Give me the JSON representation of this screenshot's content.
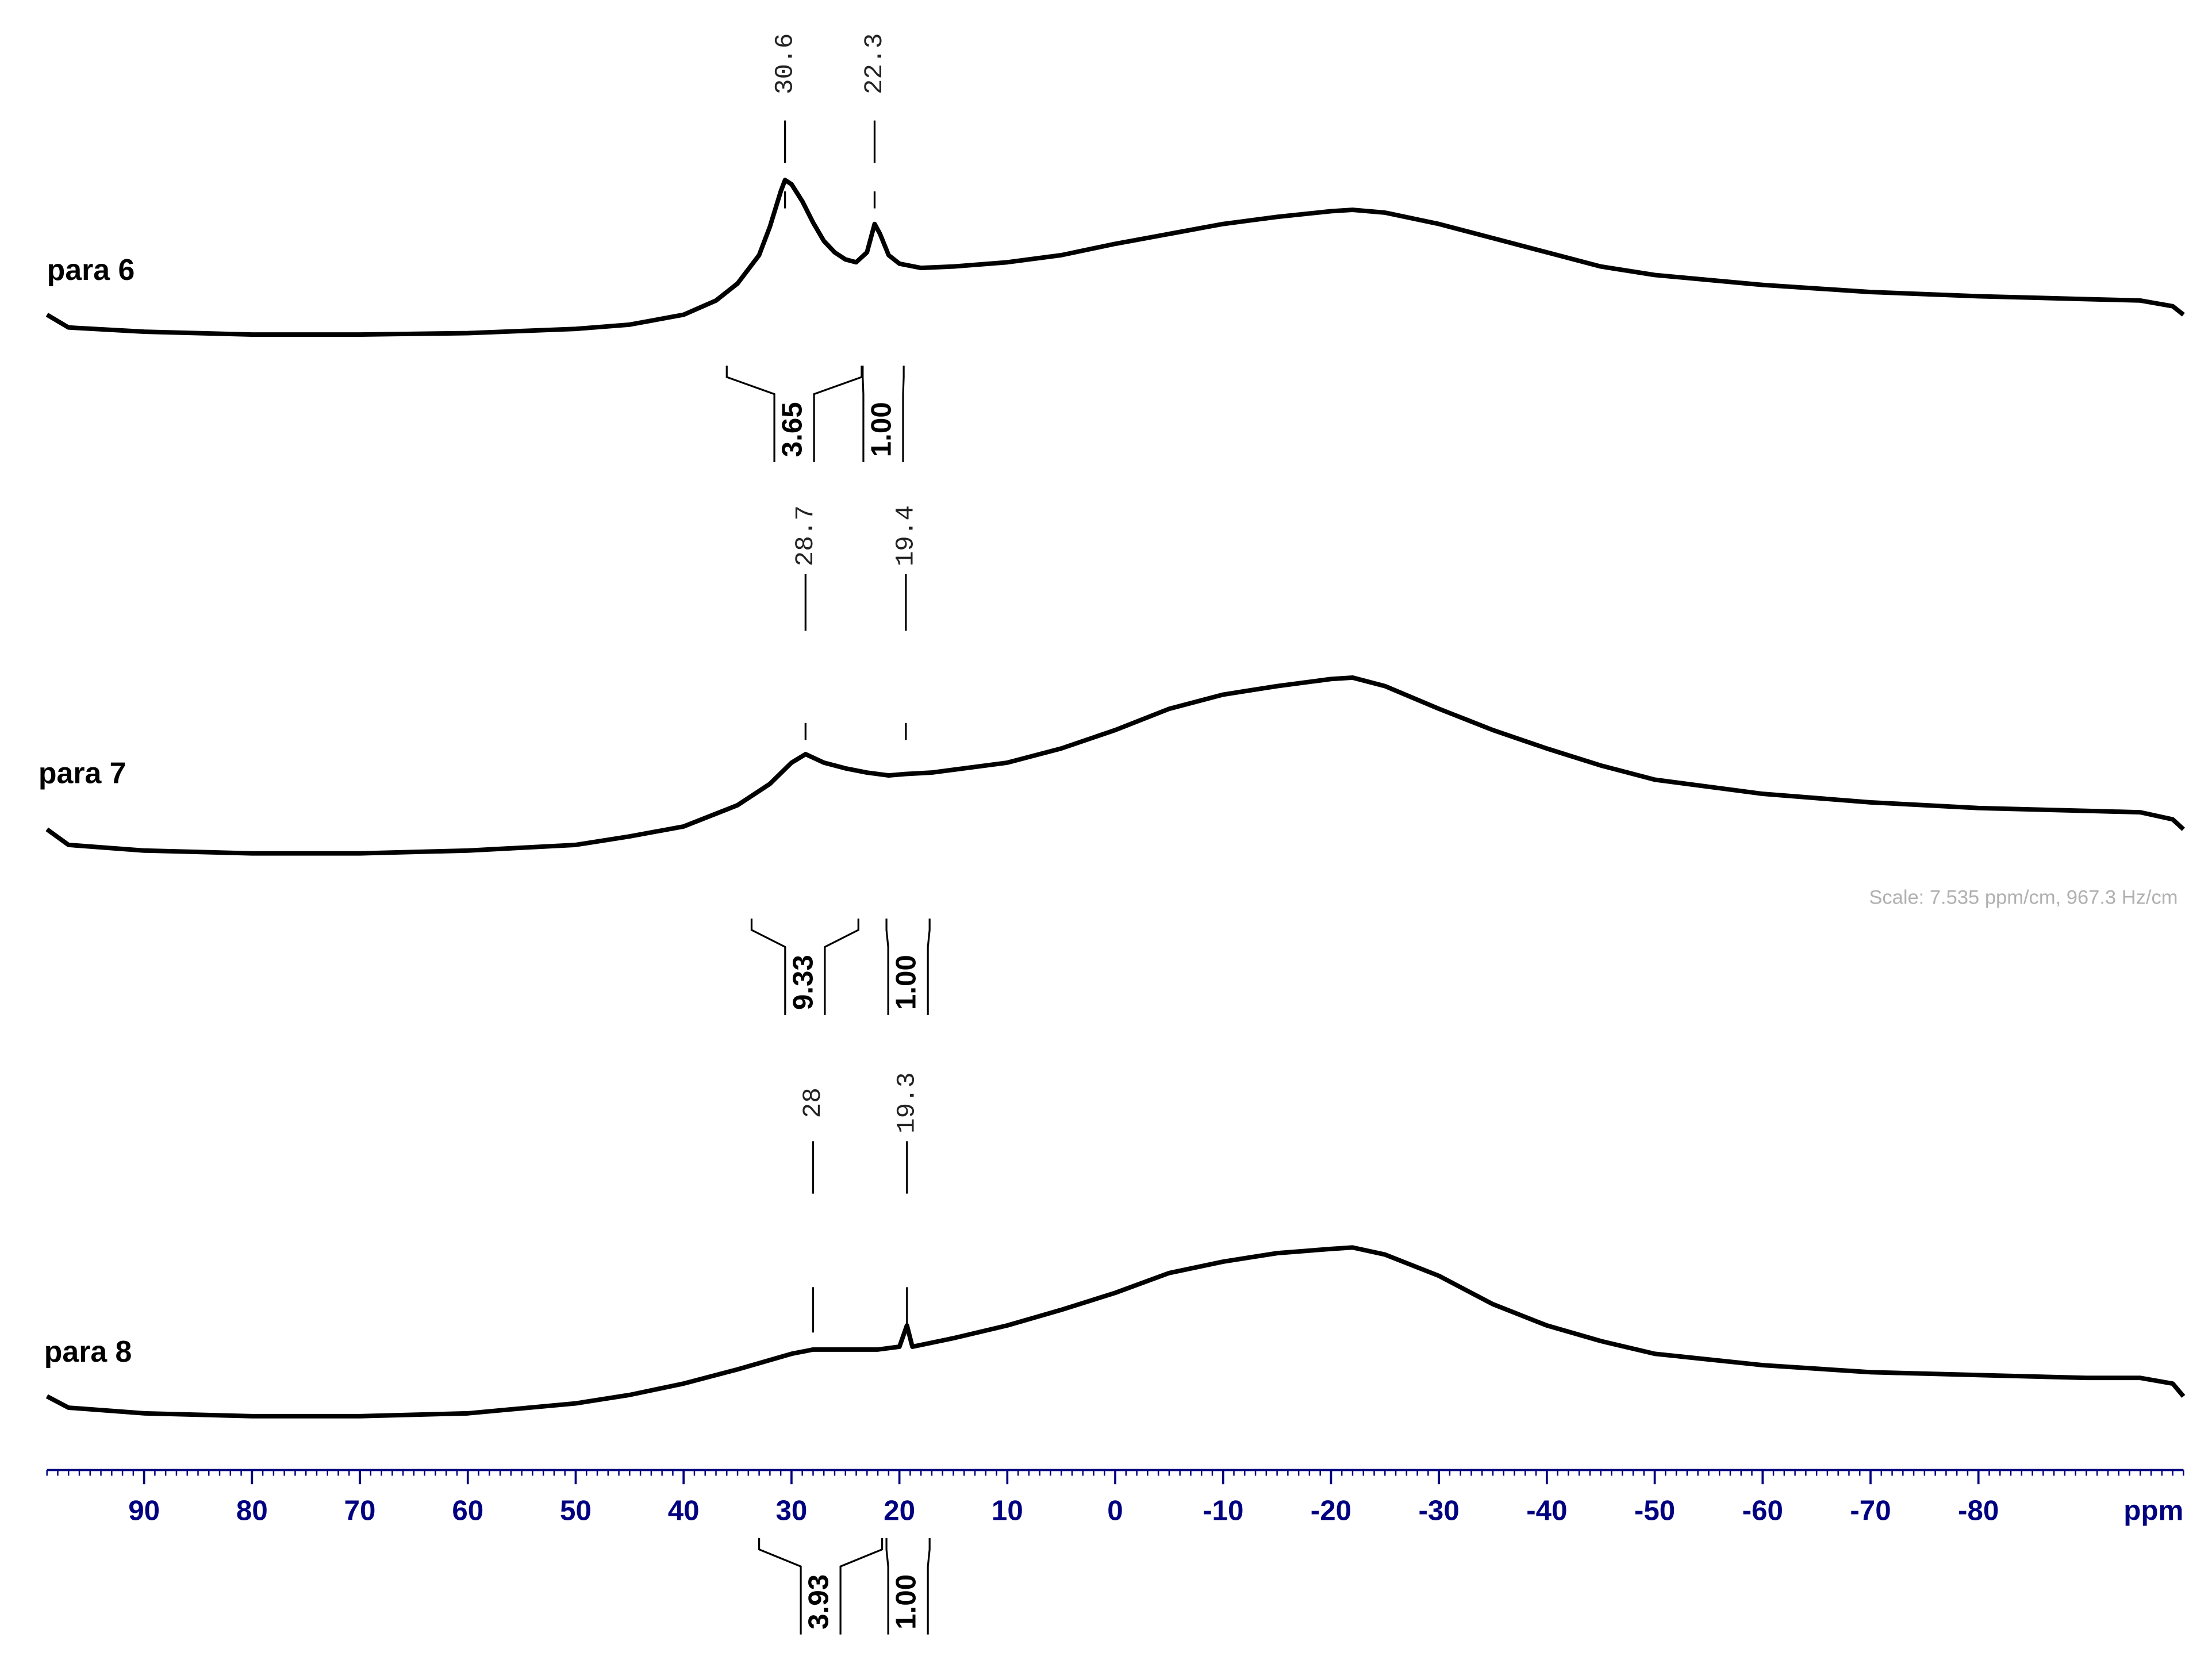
{
  "chart_data": {
    "type": "nmr",
    "xlabel": "ppm",
    "xlim": [
      99,
      -99
    ],
    "xticks": [
      90,
      80,
      70,
      60,
      50,
      40,
      30,
      20,
      10,
      0,
      -10,
      -20,
      -30,
      -40,
      -50,
      -60,
      -70,
      -80
    ],
    "xminor": 1,
    "axis_color": "#000080",
    "annotation": "Scale: 7.535 ppm/cm, 967.3 Hz/cm",
    "series": [
      {
        "name": "para 6",
        "color": "#000000",
        "x": [
          99,
          97,
          90,
          80,
          70,
          60,
          50,
          45,
          40,
          37,
          35,
          33,
          32,
          31,
          30.6,
          30,
          29,
          28,
          27,
          26,
          25,
          24,
          23,
          22.3,
          21.8,
          21,
          20,
          18,
          15,
          10,
          5,
          0,
          -5,
          -10,
          -15,
          -20,
          -22,
          -25,
          -30,
          -35,
          -40,
          -45,
          -50,
          -60,
          -70,
          -80,
          -90,
          -95,
          -98,
          -99
        ],
        "values": [
          18,
          9,
          6,
          4,
          4,
          5,
          8,
          11,
          18,
          28,
          40,
          60,
          80,
          105,
          113,
          110,
          98,
          83,
          70,
          62,
          57,
          55,
          62,
          82,
          75,
          60,
          54,
          51,
          52,
          55,
          60,
          68,
          75,
          82,
          87,
          91,
          92,
          90,
          82,
          72,
          62,
          52,
          46,
          39,
          34,
          31,
          29,
          28,
          24,
          18
        ],
        "peaks": [
          30.6,
          22.3
        ],
        "integrals": [
          {
            "from": 36,
            "to": 23.5,
            "value": 3.65
          },
          {
            "from": 23.4,
            "to": 19.6,
            "value": 1,
            "label": "1.00"
          }
        ]
      },
      {
        "name": "para 7",
        "color": "#000000",
        "x": [
          99,
          97,
          90,
          80,
          70,
          60,
          50,
          45,
          40,
          35,
          32,
          30,
          28.7,
          27,
          25,
          23,
          21,
          19.4,
          17,
          15,
          10,
          5,
          0,
          -5,
          -10,
          -15,
          -20,
          -22,
          -25,
          -30,
          -35,
          -40,
          -45,
          -50,
          -60,
          -70,
          -80,
          -90,
          -95,
          -98,
          -99
        ],
        "values": [
          20,
          9,
          5,
          3,
          3,
          5,
          9,
          15,
          22,
          37,
          52,
          67,
          73,
          67,
          63,
          60,
          58,
          59,
          60,
          62,
          67,
          77,
          90,
          105,
          115,
          121,
          126,
          127,
          121,
          105,
          90,
          77,
          65,
          55,
          45,
          39,
          35,
          33,
          32,
          27,
          20
        ],
        "peaks": [
          28.7,
          19.4
        ],
        "integrals": [
          {
            "from": 33.7,
            "to": 23.8,
            "value": 9.33
          },
          {
            "from": 21.2,
            "to": 17.2,
            "value": 1,
            "label": "1.00"
          }
        ]
      },
      {
        "name": "para 8",
        "color": "#000000",
        "x": [
          99,
          97,
          90,
          80,
          70,
          60,
          50,
          45,
          40,
          35,
          30,
          28,
          25,
          22,
          20,
          19.3,
          18.8,
          15,
          10,
          5,
          0,
          -5,
          -10,
          -15,
          -20,
          -22,
          -25,
          -30,
          -35,
          -40,
          -45,
          -50,
          -60,
          -70,
          -80,
          -90,
          -95,
          -98,
          -99
        ],
        "values": [
          18,
          10,
          6,
          4,
          4,
          6,
          13,
          19,
          27,
          37,
          48,
          51,
          51,
          51,
          53,
          68,
          53,
          59,
          68,
          79,
          91,
          105,
          113,
          119,
          122,
          123,
          118,
          103,
          83,
          68,
          57,
          48,
          40,
          35,
          33,
          31,
          31,
          27,
          18
        ],
        "peaks": [
          28.0,
          19.3
        ],
        "integrals": [
          {
            "from": 33,
            "to": 21.6,
            "value": 3.93
          },
          {
            "from": 21.2,
            "to": 17.2,
            "value": 1,
            "label": "1.00"
          }
        ]
      }
    ]
  }
}
